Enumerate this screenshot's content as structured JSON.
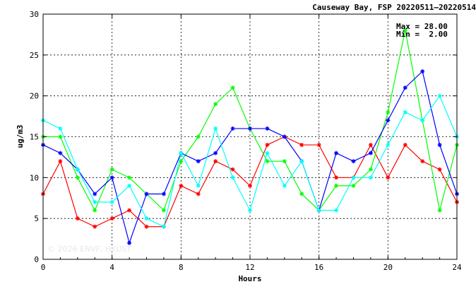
{
  "chart_data": {
    "type": "line",
    "title": "Causeway Bay, FSP 20220511–20220514",
    "xlabel": "Hours",
    "ylabel": "ug/m3",
    "xlim": [
      0,
      24
    ],
    "ylim": [
      0,
      30
    ],
    "xticks": [
      0,
      4,
      8,
      12,
      16,
      20,
      24
    ],
    "yticks": [
      0,
      5,
      10,
      15,
      20,
      25,
      30
    ],
    "grid": true,
    "annotations": {
      "max_label": "Max = 28.00",
      "min_label": "Min =  2.00"
    },
    "watermark": "© 2026 ENVF, HKUST",
    "x": [
      0,
      1,
      2,
      3,
      4,
      5,
      6,
      7,
      8,
      9,
      10,
      11,
      12,
      13,
      14,
      15,
      16,
      17,
      18,
      19,
      20,
      21,
      22,
      23,
      24
    ],
    "series": [
      {
        "color": "#ff0000",
        "values": [
          8,
          12,
          5,
          4,
          5,
          6,
          4,
          4,
          9,
          8,
          12,
          11,
          9,
          14,
          15,
          14,
          14,
          10,
          10,
          14,
          10,
          14,
          12,
          11,
          7
        ]
      },
      {
        "color": "#00ff00",
        "values": [
          15,
          15,
          10,
          6,
          11,
          10,
          8,
          6,
          12,
          15,
          19,
          21,
          16,
          12,
          12,
          8,
          6,
          9,
          9,
          11,
          18,
          28,
          17,
          6,
          14
        ]
      },
      {
        "color": "#0000ff",
        "values": [
          14,
          13,
          11,
          8,
          10,
          2,
          8,
          8,
          13,
          12,
          13,
          16,
          16,
          16,
          15,
          12,
          6,
          13,
          12,
          13,
          17,
          21,
          23,
          14,
          8
        ]
      },
      {
        "color": "#00ffff",
        "values": [
          17,
          16,
          11,
          7,
          7,
          9,
          5,
          4,
          13,
          9,
          16,
          10,
          6,
          13,
          9,
          12,
          6,
          6,
          10,
          10,
          14,
          18,
          17,
          20,
          15
        ]
      }
    ]
  }
}
